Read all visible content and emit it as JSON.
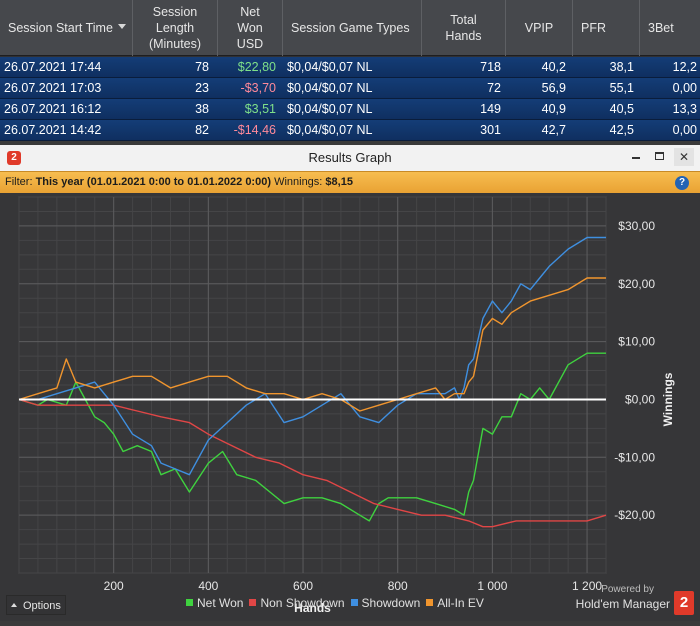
{
  "table": {
    "headers": [
      {
        "label": "Session Start Time",
        "sorted": true
      },
      {
        "label": "Session\nLength\n(Minutes)"
      },
      {
        "label": "Net\nWon\nUSD"
      },
      {
        "label": "Session Game Types"
      },
      {
        "label": "Total\nHands"
      },
      {
        "label": "VPIP"
      },
      {
        "label": "PFR"
      },
      {
        "label": "3Bet"
      }
    ],
    "rows": [
      {
        "start": "26.07.2021 17:44",
        "length": "78",
        "net": "$22,80",
        "net_sign": "pos",
        "game": "$0,04/$0,07 NL",
        "hands": "718",
        "vpip": "40,2",
        "pfr": "38,1",
        "threebet": "12,2"
      },
      {
        "start": "26.07.2021 17:03",
        "length": "23",
        "net": "-$3,70",
        "net_sign": "neg",
        "game": "$0,04/$0,07 NL",
        "hands": "72",
        "vpip": "56,9",
        "pfr": "55,1",
        "threebet": "0,00"
      },
      {
        "start": "26.07.2021 16:12",
        "length": "38",
        "net": "$3,51",
        "net_sign": "pos",
        "game": "$0,04/$0,07 NL",
        "hands": "149",
        "vpip": "40,9",
        "pfr": "40,5",
        "threebet": "13,3"
      },
      {
        "start": "26.07.2021 14:42",
        "length": "82",
        "net": "-$14,46",
        "net_sign": "neg",
        "game": "$0,04/$0,07 NL",
        "hands": "301",
        "vpip": "42,7",
        "pfr": "42,5",
        "threebet": "0,00"
      }
    ]
  },
  "window": {
    "app_logo": "2",
    "title": "Results Graph",
    "close_glyph": "✕"
  },
  "filter": {
    "label": "Filter:",
    "value": "This year (01.01.2021 0:00 to 01.01.2022 0:00)",
    "winnings_label": "Winnings:",
    "winnings_value": "$8,15",
    "help_glyph": "?"
  },
  "footer": {
    "options_label": "Options",
    "powered_by": "Powered by",
    "brand": "Hold'em Manager",
    "brand_logo": "2"
  },
  "colors": {
    "net_won": "#3fd23f",
    "non_showdown": "#e04646",
    "showdown": "#3f8fe0",
    "all_in_ev": "#f0952e",
    "zero_line": "#ffffff",
    "row_bg": "#133a73",
    "filter_bg": "#f2b040"
  },
  "chart_data": {
    "type": "line",
    "xlabel": "Hands",
    "ylabel": "Winnings",
    "xlim": [
      0,
      1240
    ],
    "ylim": [
      -30,
      35
    ],
    "xticks": [
      200,
      400,
      600,
      800,
      1000,
      1200
    ],
    "xtick_labels": [
      "200",
      "400",
      "600",
      "800",
      "1 000",
      "1 200"
    ],
    "yticks": [
      30,
      20,
      10,
      0,
      -10,
      -20
    ],
    "ytick_labels": [
      "$30,00",
      "$20,00",
      "$10,00",
      "$0,00",
      "-$10,00",
      "-$20,00"
    ],
    "grid": true,
    "legend_position": "bottom",
    "series": [
      {
        "name": "Net Won",
        "color": "#3fd23f",
        "x": [
          0,
          40,
          60,
          100,
          120,
          140,
          160,
          180,
          200,
          220,
          250,
          280,
          300,
          330,
          360,
          400,
          430,
          460,
          500,
          530,
          560,
          600,
          640,
          680,
          720,
          740,
          760,
          780,
          800,
          840,
          880,
          920,
          940,
          950,
          960,
          980,
          1000,
          1020,
          1040,
          1060,
          1080,
          1100,
          1120,
          1160,
          1200,
          1240
        ],
        "y": [
          0,
          -1,
          0,
          -1,
          3,
          0,
          -3,
          -4,
          -6,
          -9,
          -8,
          -9,
          -13,
          -12,
          -16,
          -11,
          -9,
          -13,
          -14,
          -16,
          -18,
          -17,
          -17,
          -18,
          -20,
          -21,
          -18,
          -17,
          -17,
          -17,
          -18,
          -19,
          -20,
          -16,
          -14,
          -5,
          -6,
          -3,
          -3,
          1,
          0,
          2,
          0,
          6,
          8,
          8
        ]
      },
      {
        "name": "Non Showdown",
        "color": "#e04646",
        "x": [
          0,
          40,
          80,
          120,
          160,
          200,
          250,
          300,
          360,
          400,
          450,
          500,
          550,
          600,
          650,
          700,
          750,
          800,
          850,
          900,
          950,
          980,
          1000,
          1050,
          1100,
          1150,
          1200,
          1240
        ],
        "y": [
          0,
          -1,
          -1,
          -1,
          -1,
          -1,
          -2,
          -3,
          -4,
          -6,
          -8,
          -10,
          -11,
          -13,
          -14,
          -16,
          -18,
          -19,
          -20,
          -20,
          -21,
          -22,
          -22,
          -21,
          -21,
          -21,
          -21,
          -20
        ]
      },
      {
        "name": "Showdown",
        "color": "#3f8fe0",
        "x": [
          0,
          40,
          80,
          120,
          160,
          180,
          200,
          240,
          280,
          300,
          330,
          360,
          400,
          440,
          480,
          520,
          560,
          600,
          640,
          680,
          720,
          760,
          800,
          840,
          880,
          900,
          920,
          930,
          940,
          950,
          960,
          980,
          1000,
          1020,
          1040,
          1060,
          1080,
          1100,
          1120,
          1160,
          1200,
          1240
        ],
        "y": [
          0,
          0,
          1,
          2,
          3,
          1,
          -1,
          -6,
          -8,
          -11,
          -12,
          -13,
          -7,
          -4,
          -1,
          1,
          -4,
          -3,
          -1,
          1,
          -3,
          -4,
          -1,
          1,
          1,
          1,
          2,
          0,
          2,
          6,
          7,
          14,
          17,
          15,
          17,
          20,
          19,
          21,
          23,
          26,
          28,
          28
        ]
      },
      {
        "name": "All-In EV",
        "color": "#f0952e",
        "x": [
          0,
          40,
          80,
          100,
          120,
          160,
          200,
          240,
          280,
          320,
          360,
          400,
          440,
          480,
          520,
          560,
          600,
          640,
          680,
          720,
          760,
          800,
          840,
          880,
          900,
          920,
          940,
          950,
          960,
          980,
          1000,
          1020,
          1040,
          1080,
          1120,
          1160,
          1200,
          1240
        ],
        "y": [
          0,
          1,
          2,
          7,
          3,
          2,
          3,
          4,
          4,
          2,
          3,
          4,
          4,
          2,
          1,
          1,
          0,
          1,
          0,
          -2,
          -1,
          0,
          1,
          2,
          0,
          1,
          1,
          3,
          4,
          12,
          14,
          13,
          15,
          17,
          18,
          19,
          21,
          21
        ]
      }
    ]
  }
}
